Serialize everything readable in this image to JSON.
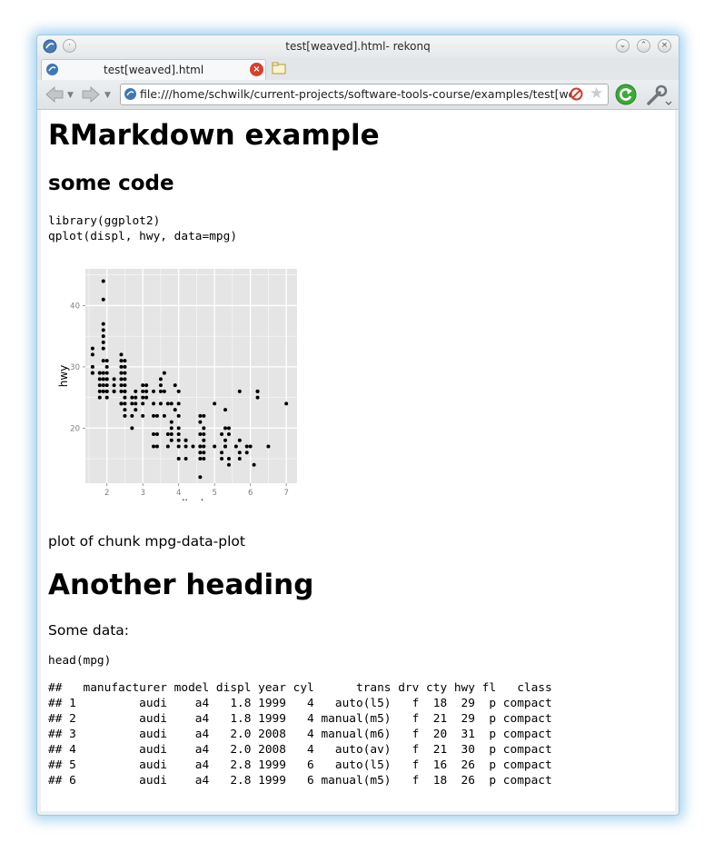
{
  "window": {
    "title": "test[weaved].html- rekonq",
    "tab_label": "test[weaved].html",
    "url": "file:///home/schwilk/current-projects/software-tools-course/examples/test[weaved].html"
  },
  "page": {
    "h1": "RMarkdown example",
    "h2": "some code",
    "code1": "library(ggplot2)\nqplot(displ, hwy, data=mpg)",
    "caption": "plot of chunk mpg-data-plot",
    "h1_second": "Another heading",
    "para": "Some data:",
    "code2": "head(mpg)",
    "table_output": "##   manufacturer model displ year cyl      trans drv cty hwy fl   class\n## 1         audi    a4   1.8 1999   4   auto(l5)   f  18  29  p compact\n## 2         audi    a4   1.8 1999   4 manual(m5)   f  21  29  p compact\n## 3         audi    a4   2.0 2008   4 manual(m6)   f  20  31  p compact\n## 4         audi    a4   2.0 2008   4   auto(av)   f  21  30  p compact\n## 5         audi    a4   2.8 1999   6   auto(l5)   f  16  26  p compact\n## 6         audi    a4   2.8 1999   6 manual(m5)   f  18  26  p compact"
  },
  "chart_data": {
    "type": "scatter",
    "title": "",
    "xlabel": "displ",
    "ylabel": "hwy",
    "xlim": [
      1.4,
      7.3
    ],
    "ylim": [
      11,
      46
    ],
    "xticks": [
      2,
      3,
      4,
      5,
      6,
      7
    ],
    "yticks": [
      20,
      30,
      40
    ],
    "grid": true,
    "colors": {
      "panel": "#e5e5e5",
      "grid": "#ffffff",
      "point": "#000000"
    },
    "x": [
      1.6,
      1.6,
      1.6,
      1.6,
      1.6,
      1.8,
      1.8,
      1.8,
      1.8,
      1.8,
      1.9,
      1.9,
      1.9,
      1.9,
      1.9,
      1.9,
      1.9,
      1.9,
      1.9,
      1.9,
      1.9,
      1.9,
      2.0,
      2.0,
      2.0,
      2.0,
      2.0,
      2.0,
      2.0,
      2.0,
      2.2,
      2.2,
      2.2,
      2.2,
      2.4,
      2.4,
      2.4,
      2.4,
      2.4,
      2.4,
      2.4,
      2.4,
      2.5,
      2.5,
      2.5,
      2.5,
      2.5,
      2.5,
      2.5,
      2.5,
      2.5,
      2.7,
      2.7,
      2.7,
      2.7,
      2.8,
      2.8,
      2.8,
      2.8,
      3.0,
      3.0,
      3.0,
      3.0,
      3.1,
      3.1,
      3.1,
      3.3,
      3.3,
      3.3,
      3.3,
      3.4,
      3.4,
      3.4,
      3.5,
      3.5,
      3.5,
      3.6,
      3.6,
      3.7,
      3.7,
      3.8,
      3.8,
      3.8,
      3.8,
      3.9,
      3.9,
      4.0,
      4.0,
      4.0,
      4.0,
      4.0,
      4.0,
      4.0,
      4.2,
      4.2,
      4.2,
      4.4,
      4.6,
      4.6,
      4.6,
      4.6,
      4.6,
      4.6,
      4.6,
      4.7,
      4.7,
      4.7,
      4.7,
      4.7,
      4.7,
      5.0,
      5.2,
      5.2,
      5.3,
      5.3,
      5.3,
      5.3,
      5.4,
      5.4,
      5.4,
      5.6,
      5.7,
      5.7,
      5.7,
      5.9,
      6.0,
      6.1,
      6.2,
      6.2,
      6.5,
      7.0
    ],
    "y": [
      33,
      32,
      29,
      30,
      29,
      29,
      25,
      26,
      29,
      28,
      28,
      33,
      35,
      44,
      41,
      37,
      34,
      36,
      26,
      29,
      27,
      31,
      26,
      28,
      29,
      30,
      31,
      28,
      26,
      27,
      27,
      26,
      26,
      28,
      24,
      27,
      28,
      30,
      29,
      31,
      32,
      24,
      23,
      24,
      25,
      26,
      27,
      28,
      29,
      30,
      31,
      20,
      22,
      24,
      25,
      23,
      24,
      25,
      26,
      24,
      25,
      26,
      27,
      25,
      26,
      27,
      17,
      19,
      22,
      24,
      17,
      19,
      22,
      24,
      26,
      28,
      26,
      29,
      17,
      19,
      18,
      19,
      20,
      21,
      23,
      27,
      15,
      17,
      18,
      20,
      22,
      24,
      26,
      15,
      17,
      18,
      17,
      12,
      15,
      16,
      17,
      19,
      21,
      22,
      15,
      16,
      17,
      19,
      20,
      22,
      17,
      15,
      16,
      17,
      18,
      20,
      23,
      14,
      15,
      19,
      17,
      15,
      16,
      18,
      16,
      17,
      14,
      25,
      26,
      17,
      24
    ],
    "extra_points": {
      "x": [
        1.8,
        2.0,
        2.4,
        2.5,
        2.5,
        3.0,
        3.3,
        3.5,
        3.6,
        3.7,
        3.8,
        4.0,
        4.2,
        4.6,
        4.7,
        5.0,
        5.2,
        5.3,
        5.4,
        5.7,
        5.9,
        6.2
      ],
      "y": [
        27,
        25,
        26,
        22,
        26,
        22,
        26,
        27,
        22,
        24,
        24,
        19,
        18,
        17,
        18,
        24,
        19,
        17,
        20,
        26,
        17,
        26
      ]
    }
  }
}
